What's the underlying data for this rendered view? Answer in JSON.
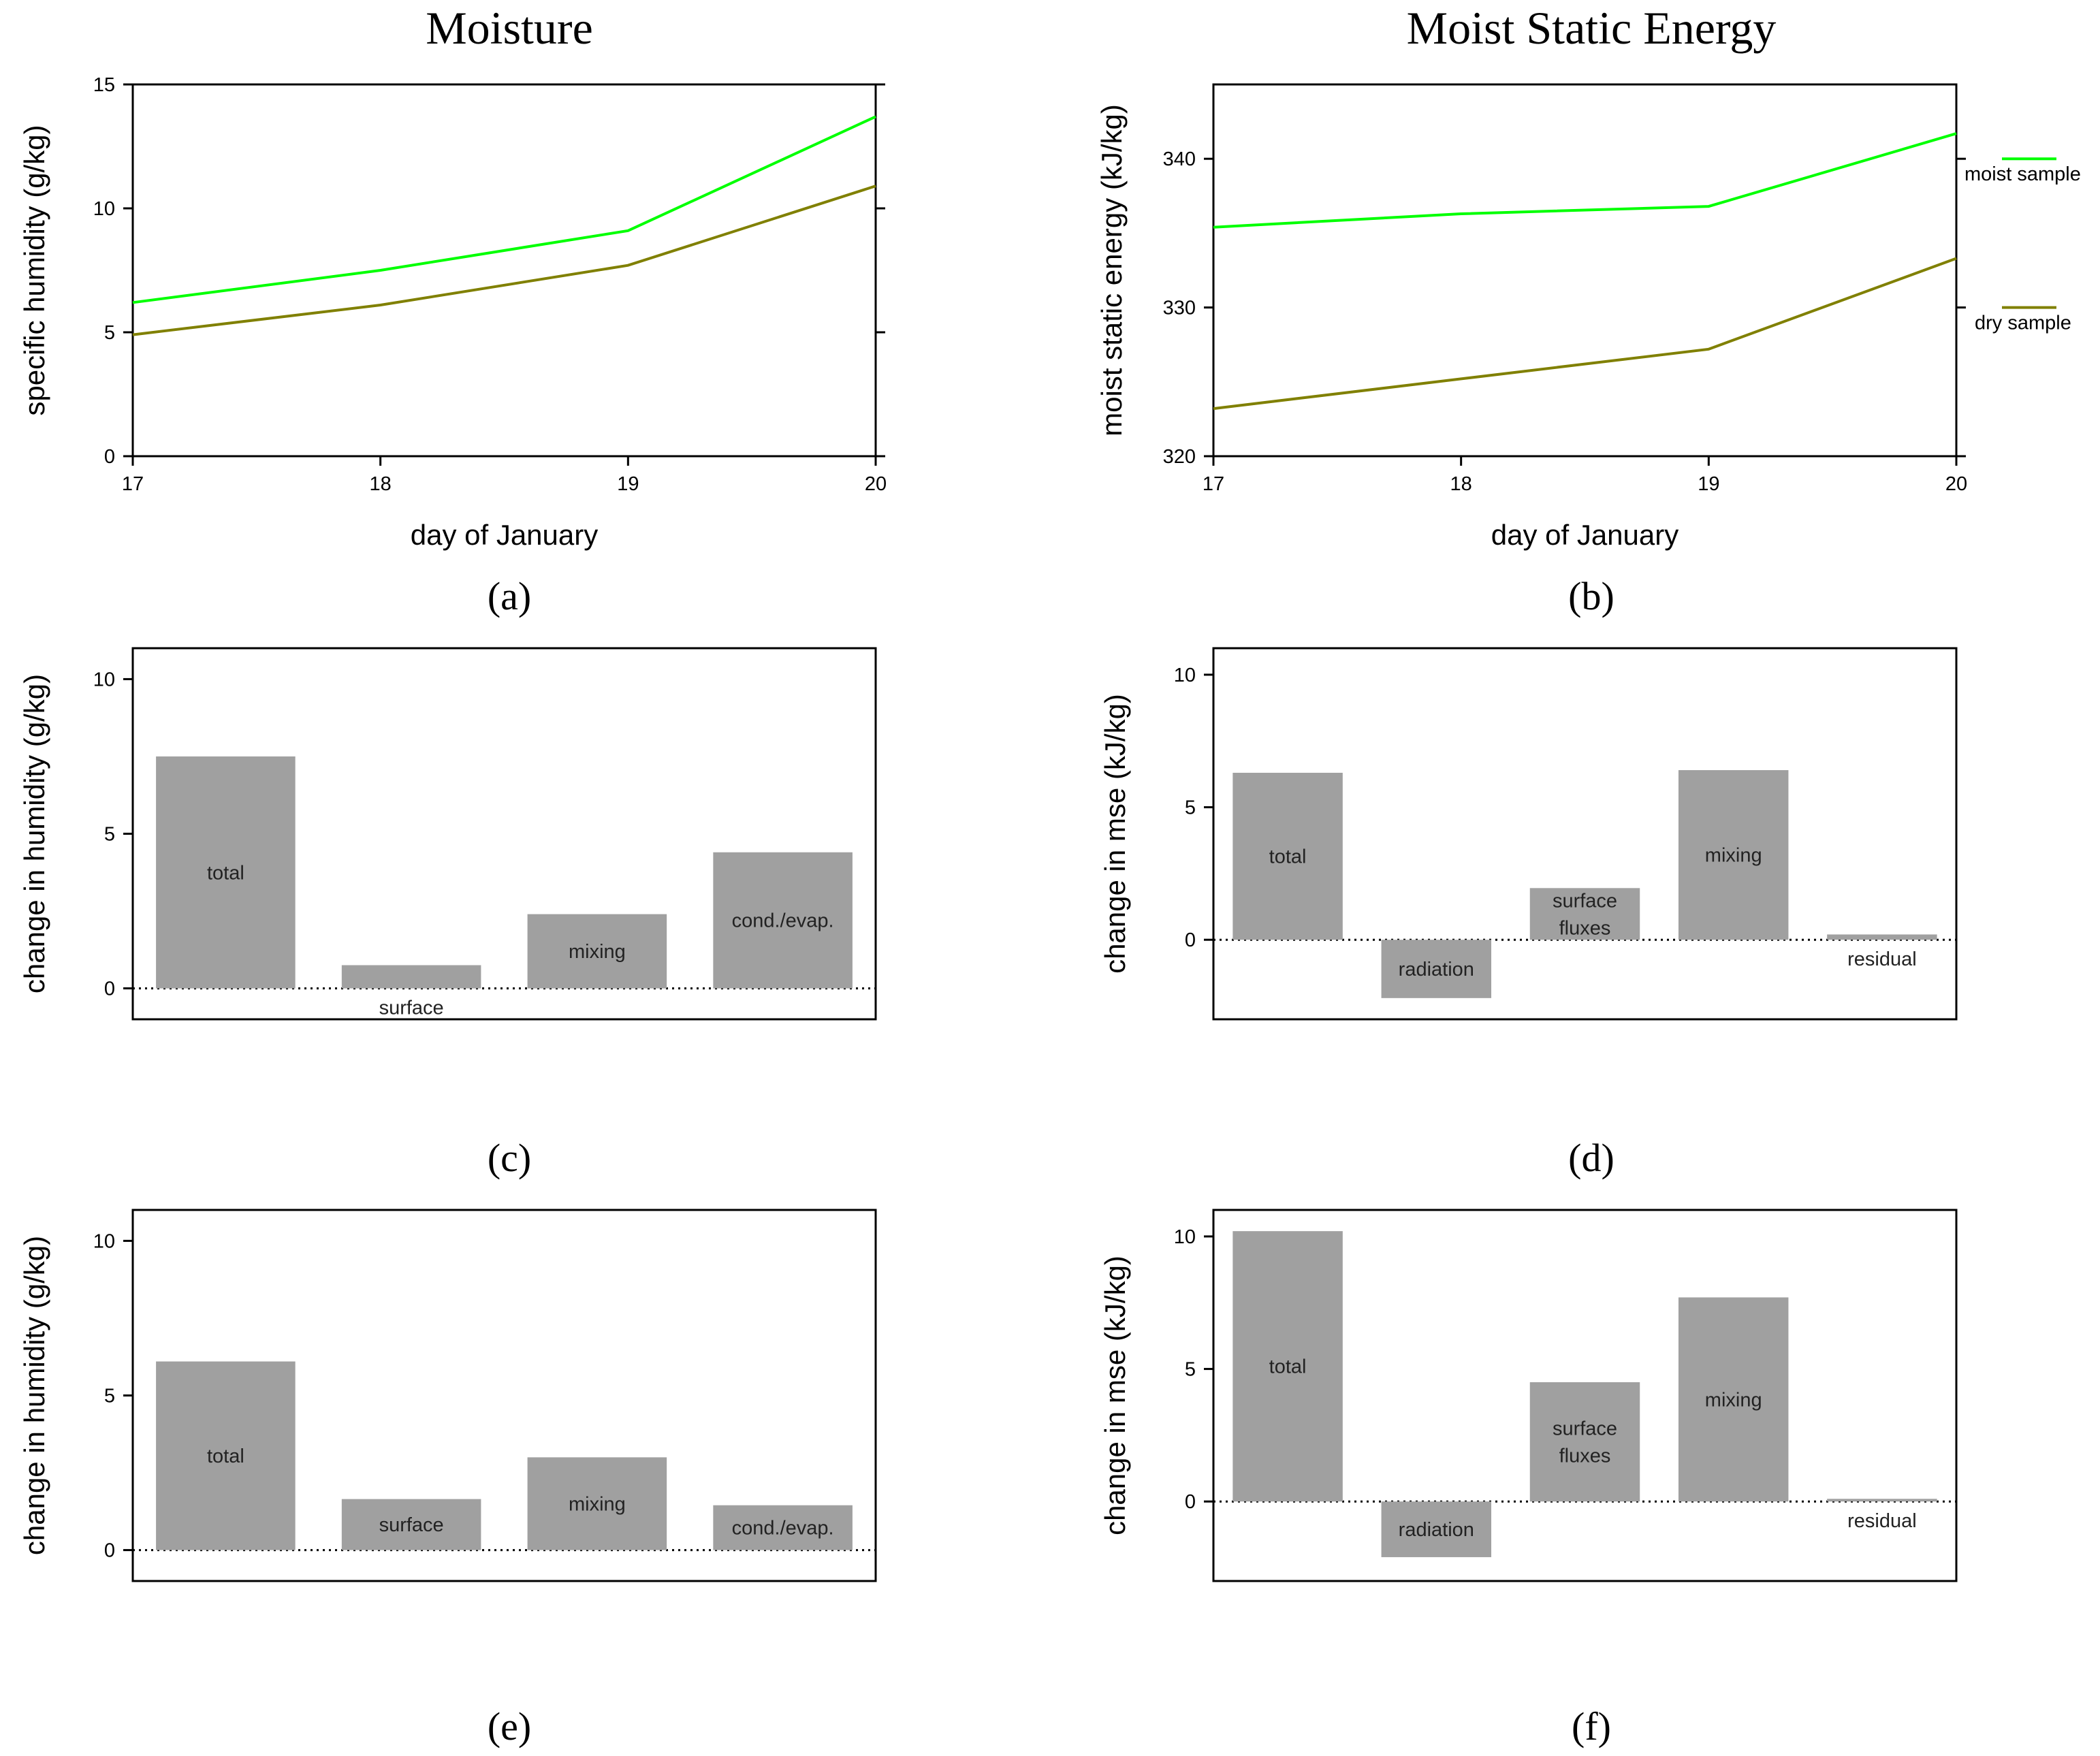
{
  "figure": {
    "column_titles": [
      "Moisture",
      "Moist Static Energy"
    ],
    "panel_tags": [
      "(a)",
      "(b)",
      "(c)",
      "(d)",
      "(e)",
      "(f)"
    ]
  },
  "colors": {
    "moist_line": "#00ff00",
    "dry_line": "#808000",
    "bar_fill": "#a0a0a0"
  },
  "chart_data": [
    {
      "id": "a",
      "type": "line",
      "title": "Moisture",
      "xlabel": "day of January",
      "ylabel": "specific humidity (g/kg)",
      "x": [
        17,
        18,
        19,
        20
      ],
      "xlim": [
        17,
        20
      ],
      "ylim": [
        0,
        15
      ],
      "xticks": [
        17,
        18,
        19,
        20
      ],
      "yticks": [
        0,
        5,
        10,
        15
      ],
      "series": [
        {
          "name": "moist sample",
          "values": [
            6.2,
            7.5,
            9.1,
            13.7
          ]
        },
        {
          "name": "dry sample",
          "values": [
            4.9,
            6.1,
            7.7,
            10.9
          ]
        }
      ]
    },
    {
      "id": "b",
      "type": "line",
      "title": "Moist Static Energy",
      "xlabel": "day of January",
      "ylabel": "moist static energy (kJ/kg)",
      "x": [
        17,
        18,
        19,
        20
      ],
      "xlim": [
        17,
        20
      ],
      "ylim": [
        320,
        345
      ],
      "xticks": [
        17,
        18,
        19,
        20
      ],
      "yticks": [
        320,
        330,
        340
      ],
      "legend": [
        "moist sample",
        "dry sample"
      ],
      "legend_position": "right",
      "series": [
        {
          "name": "moist sample",
          "values": [
            335.4,
            336.3,
            336.8,
            341.7
          ]
        },
        {
          "name": "dry sample",
          "values": [
            323.2,
            325.2,
            327.2,
            333.3
          ]
        }
      ]
    },
    {
      "id": "c",
      "type": "bar",
      "ylabel": "change in humidity (g/kg)",
      "ylim": [
        -1,
        11
      ],
      "yticks": [
        0,
        5,
        10
      ],
      "categories": [
        "total",
        "surface",
        "mixing",
        "cond./evap."
      ],
      "values": [
        7.5,
        0.75,
        2.4,
        4.4
      ]
    },
    {
      "id": "d",
      "type": "bar",
      "ylabel": "change in mse (kJ/kg)",
      "ylim": [
        -3,
        11
      ],
      "yticks": [
        0,
        5,
        10
      ],
      "categories": [
        "total",
        "radiation",
        "surface fluxes",
        "mixing",
        "residual"
      ],
      "values": [
        6.3,
        -2.2,
        1.95,
        6.4,
        0.2
      ]
    },
    {
      "id": "e",
      "type": "bar",
      "ylabel": "change in humidity (g/kg)",
      "ylim": [
        -1,
        11
      ],
      "yticks": [
        0,
        5,
        10
      ],
      "categories": [
        "total",
        "surface",
        "mixing",
        "cond./evap."
      ],
      "values": [
        6.1,
        1.65,
        3.0,
        1.45
      ]
    },
    {
      "id": "f",
      "type": "bar",
      "ylabel": "change in mse (kJ/kg)",
      "ylim": [
        -3,
        11
      ],
      "yticks": [
        0,
        5,
        10
      ],
      "categories": [
        "total",
        "radiation",
        "surface fluxes",
        "mixing",
        "residual"
      ],
      "values": [
        10.2,
        -2.1,
        4.5,
        7.7,
        0.1
      ]
    }
  ]
}
